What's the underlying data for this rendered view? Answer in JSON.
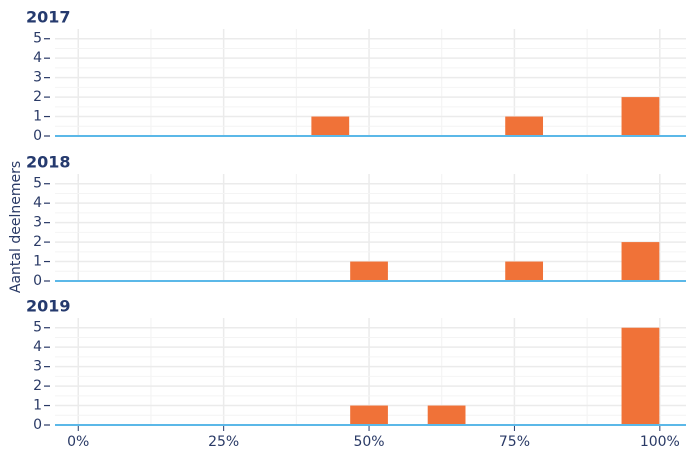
{
  "chart_data": [
    {
      "type": "histogram",
      "title": "2017",
      "color": "#f07238",
      "grid": true,
      "bins": [
        0,
        6.67,
        13.33,
        20,
        26.67,
        33.33,
        40,
        46.67,
        53.33,
        60,
        66.67,
        73.33,
        80,
        86.67,
        93.33,
        100
      ],
      "values": [
        0,
        0,
        0,
        0,
        0,
        0,
        1,
        0,
        0,
        0,
        0,
        1,
        0,
        0,
        2
      ],
      "xlim": [
        -4,
        104.5
      ],
      "ylim": [
        0,
        5.5
      ],
      "yticks": [
        0,
        1,
        2,
        3,
        4,
        5
      ]
    },
    {
      "type": "histogram",
      "title": "2018",
      "color": "#f07238",
      "grid": true,
      "ylabel": "Aantal deelnemers",
      "bins": [
        0,
        6.67,
        13.33,
        20,
        26.67,
        33.33,
        40,
        46.67,
        53.33,
        60,
        66.67,
        73.33,
        80,
        86.67,
        93.33,
        100
      ],
      "values": [
        0,
        0,
        0,
        0,
        0,
        0,
        0,
        1,
        0,
        0,
        0,
        1,
        0,
        0,
        2
      ],
      "xlim": [
        -4,
        104.5
      ],
      "ylim": [
        0,
        5.5
      ],
      "yticks": [
        0,
        1,
        2,
        3,
        4,
        5
      ]
    },
    {
      "type": "histogram",
      "title": "2019",
      "color": "#f07238",
      "grid": true,
      "bins": [
        0,
        6.67,
        13.33,
        20,
        26.67,
        33.33,
        40,
        46.67,
        53.33,
        60,
        66.67,
        73.33,
        80,
        86.67,
        93.33,
        100
      ],
      "values": [
        0,
        0,
        0,
        0,
        0,
        0,
        0,
        1,
        0,
        1,
        0,
        0,
        0,
        0,
        5
      ],
      "xlim": [
        -4,
        104.5
      ],
      "ylim": [
        0,
        5.5
      ],
      "yticks": [
        0,
        1,
        2,
        3,
        4,
        5
      ],
      "xticks": [
        {
          "value": 0,
          "label": "0%"
        },
        {
          "value": 25,
          "label": "25%"
        },
        {
          "value": 50,
          "label": "50%"
        },
        {
          "value": 75,
          "label": "75%"
        },
        {
          "value": 100,
          "label": "100%"
        }
      ]
    }
  ]
}
